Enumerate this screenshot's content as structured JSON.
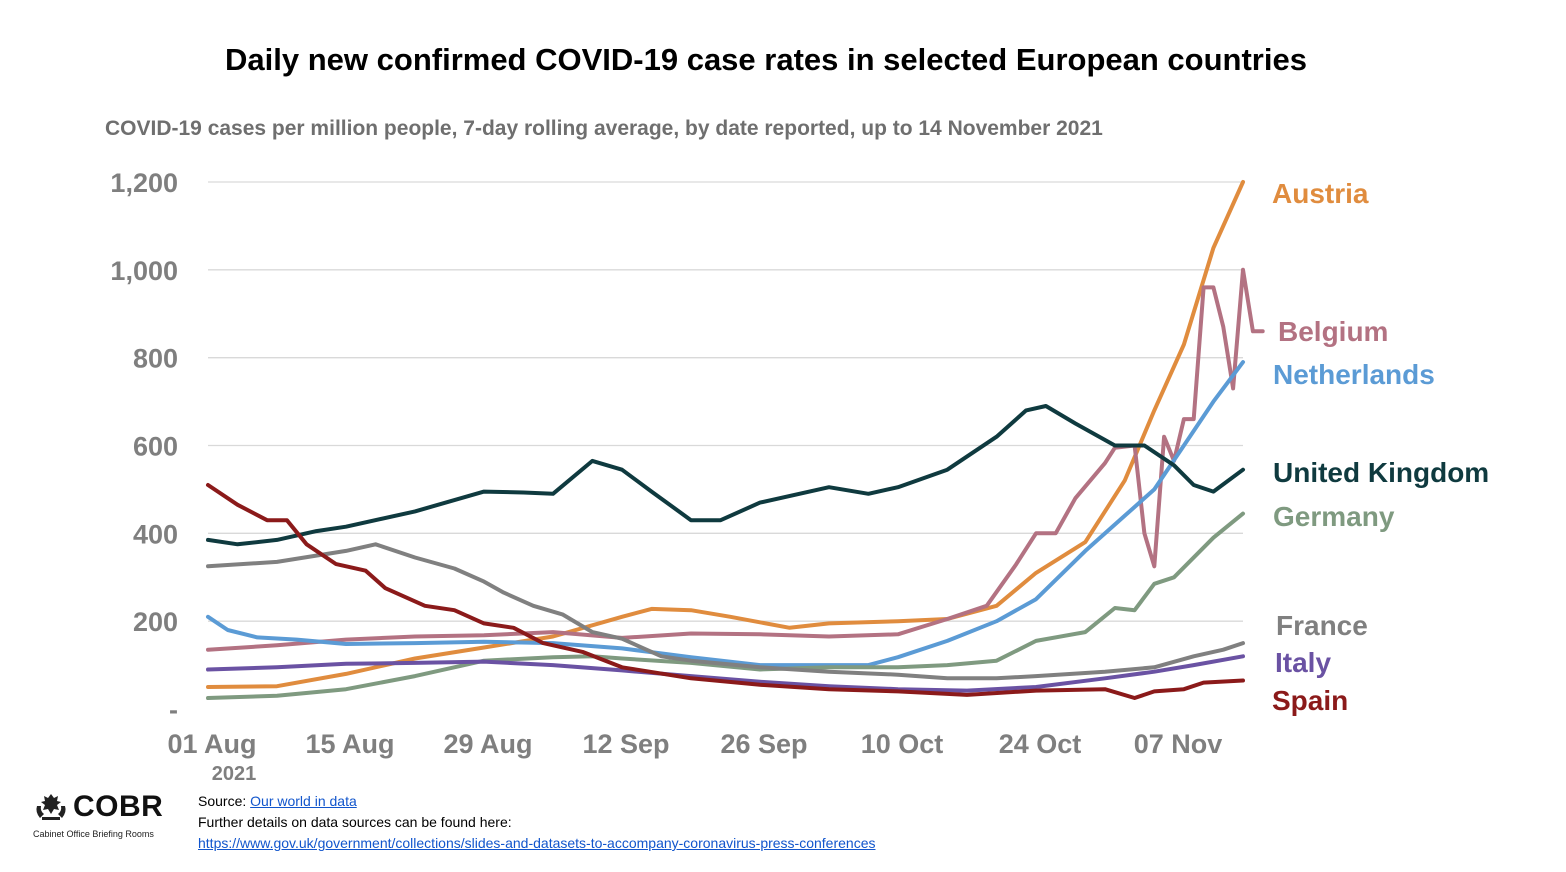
{
  "title": "Daily new confirmed COVID-19 case rates in selected European countries",
  "subtitle": "COVID-19 cases per million people, 7-day rolling average, by date reported, up to 14 November 2021",
  "footer": {
    "source_prefix": "Source: ",
    "source_link": "Our world in data",
    "details_text": "Further details on data sources can be found here:",
    "details_link": "https://www.gov.uk/government/collections/slides-and-datasets-to-accompany-coronavirus-press-conferences"
  },
  "logo": {
    "word": "COBR",
    "subtitle": "Cabinet Office Briefing Rooms"
  },
  "chart_data": {
    "type": "line",
    "title": "Daily new confirmed COVID-19 case rates in selected European countries",
    "subtitle": "COVID-19 cases per million people, 7-day rolling average, by date reported, up to 14 November 2021",
    "xlabel": "",
    "ylabel": "",
    "x_range": [
      "2021-08-01",
      "2021-11-14"
    ],
    "ylim": [
      0,
      1200
    ],
    "y_ticks": [
      {
        "value": 0,
        "label": "-"
      },
      {
        "value": 200,
        "label": "200"
      },
      {
        "value": 400,
        "label": "400"
      },
      {
        "value": 600,
        "label": "600"
      },
      {
        "value": 800,
        "label": "800"
      },
      {
        "value": 1000,
        "label": "1,000"
      },
      {
        "value": 1200,
        "label": "1,200"
      }
    ],
    "x_ticks": [
      {
        "date": "2021-08-01",
        "label": "01 Aug"
      },
      {
        "date": "2021-08-15",
        "label": "15 Aug"
      },
      {
        "date": "2021-08-29",
        "label": "29 Aug"
      },
      {
        "date": "2021-09-12",
        "label": "12 Sep"
      },
      {
        "date": "2021-09-26",
        "label": "26 Sep"
      },
      {
        "date": "2021-10-10",
        "label": "10 Oct"
      },
      {
        "date": "2021-10-24",
        "label": "24 Oct"
      },
      {
        "date": "2021-11-07",
        "label": "07 Nov"
      }
    ],
    "year_label": "2021",
    "grid": true,
    "legend": "labels at right end of lines",
    "series": [
      {
        "name": "Austria",
        "color": "#e08c3e",
        "points": [
          [
            "2021-08-01",
            50
          ],
          [
            "2021-08-08",
            52
          ],
          [
            "2021-08-15",
            80
          ],
          [
            "2021-08-22",
            115
          ],
          [
            "2021-08-29",
            140
          ],
          [
            "2021-09-05",
            165
          ],
          [
            "2021-09-12",
            210
          ],
          [
            "2021-09-15",
            228
          ],
          [
            "2021-09-19",
            225
          ],
          [
            "2021-09-23",
            210
          ],
          [
            "2021-09-29",
            185
          ],
          [
            "2021-10-03",
            195
          ],
          [
            "2021-10-10",
            200
          ],
          [
            "2021-10-15",
            205
          ],
          [
            "2021-10-20",
            235
          ],
          [
            "2021-10-24",
            310
          ],
          [
            "2021-10-29",
            380
          ],
          [
            "2021-11-02",
            520
          ],
          [
            "2021-11-05",
            680
          ],
          [
            "2021-11-08",
            830
          ],
          [
            "2021-11-11",
            1050
          ],
          [
            "2021-11-14",
            1200
          ]
        ]
      },
      {
        "name": "Belgium",
        "color": "#b37282",
        "points": [
          [
            "2021-08-01",
            135
          ],
          [
            "2021-08-08",
            145
          ],
          [
            "2021-08-15",
            158
          ],
          [
            "2021-08-22",
            165
          ],
          [
            "2021-08-29",
            168
          ],
          [
            "2021-09-05",
            175
          ],
          [
            "2021-09-12",
            162
          ],
          [
            "2021-09-19",
            172
          ],
          [
            "2021-09-26",
            170
          ],
          [
            "2021-10-03",
            165
          ],
          [
            "2021-10-10",
            170
          ],
          [
            "2021-10-15",
            205
          ],
          [
            "2021-10-19",
            235
          ],
          [
            "2021-10-22",
            330
          ],
          [
            "2021-10-24",
            400
          ],
          [
            "2021-10-26",
            400
          ],
          [
            "2021-10-28",
            480
          ],
          [
            "2021-10-31",
            560
          ],
          [
            "2021-11-01",
            595
          ],
          [
            "2021-11-03",
            600
          ],
          [
            "2021-11-04",
            400
          ],
          [
            "2021-11-05",
            325
          ],
          [
            "2021-11-06",
            620
          ],
          [
            "2021-11-07",
            565
          ],
          [
            "2021-11-08",
            660
          ],
          [
            "2021-11-09",
            660
          ],
          [
            "2021-11-10",
            960
          ],
          [
            "2021-11-11",
            960
          ],
          [
            "2021-11-12",
            870
          ],
          [
            "2021-11-13",
            730
          ],
          [
            "2021-11-14",
            1000
          ],
          [
            "2021-11-15",
            860
          ],
          [
            "2021-11-16",
            860
          ]
        ]
      },
      {
        "name": "Netherlands",
        "color": "#5b9bd5",
        "points": [
          [
            "2021-08-01",
            210
          ],
          [
            "2021-08-03",
            180
          ],
          [
            "2021-08-06",
            163
          ],
          [
            "2021-08-10",
            158
          ],
          [
            "2021-08-15",
            148
          ],
          [
            "2021-08-22",
            150
          ],
          [
            "2021-08-29",
            153
          ],
          [
            "2021-09-05",
            150
          ],
          [
            "2021-09-12",
            138
          ],
          [
            "2021-09-19",
            118
          ],
          [
            "2021-09-26",
            100
          ],
          [
            "2021-10-03",
            100
          ],
          [
            "2021-10-07",
            100
          ],
          [
            "2021-10-10",
            118
          ],
          [
            "2021-10-15",
            155
          ],
          [
            "2021-10-20",
            200
          ],
          [
            "2021-10-24",
            250
          ],
          [
            "2021-10-29",
            360
          ],
          [
            "2021-11-02",
            440
          ],
          [
            "2021-11-05",
            500
          ],
          [
            "2021-11-08",
            600
          ],
          [
            "2021-11-11",
            700
          ],
          [
            "2021-11-14",
            790
          ]
        ]
      },
      {
        "name": "United Kingdom",
        "color": "#0f3a3f",
        "points": [
          [
            "2021-08-01",
            385
          ],
          [
            "2021-08-04",
            375
          ],
          [
            "2021-08-08",
            385
          ],
          [
            "2021-08-12",
            405
          ],
          [
            "2021-08-15",
            415
          ],
          [
            "2021-08-22",
            450
          ],
          [
            "2021-08-29",
            495
          ],
          [
            "2021-09-02",
            493
          ],
          [
            "2021-09-05",
            490
          ],
          [
            "2021-09-09",
            565
          ],
          [
            "2021-09-12",
            545
          ],
          [
            "2021-09-15",
            495
          ],
          [
            "2021-09-19",
            430
          ],
          [
            "2021-09-22",
            430
          ],
          [
            "2021-09-26",
            470
          ],
          [
            "2021-10-03",
            505
          ],
          [
            "2021-10-07",
            490
          ],
          [
            "2021-10-10",
            505
          ],
          [
            "2021-10-15",
            545
          ],
          [
            "2021-10-20",
            620
          ],
          [
            "2021-10-23",
            680
          ],
          [
            "2021-10-25",
            690
          ],
          [
            "2021-10-28",
            650
          ],
          [
            "2021-11-01",
            600
          ],
          [
            "2021-11-04",
            600
          ],
          [
            "2021-11-07",
            555
          ],
          [
            "2021-11-09",
            510
          ],
          [
            "2021-11-11",
            495
          ],
          [
            "2021-11-14",
            545
          ]
        ]
      },
      {
        "name": "Germany",
        "color": "#7f9a80",
        "points": [
          [
            "2021-08-01",
            25
          ],
          [
            "2021-08-08",
            30
          ],
          [
            "2021-08-15",
            45
          ],
          [
            "2021-08-22",
            75
          ],
          [
            "2021-08-29",
            110
          ],
          [
            "2021-09-05",
            118
          ],
          [
            "2021-09-09",
            120
          ],
          [
            "2021-09-12",
            115
          ],
          [
            "2021-09-19",
            105
          ],
          [
            "2021-09-26",
            90
          ],
          [
            "2021-10-03",
            95
          ],
          [
            "2021-10-10",
            95
          ],
          [
            "2021-10-15",
            100
          ],
          [
            "2021-10-20",
            110
          ],
          [
            "2021-10-24",
            155
          ],
          [
            "2021-10-29",
            175
          ],
          [
            "2021-11-01",
            230
          ],
          [
            "2021-11-03",
            225
          ],
          [
            "2021-11-05",
            285
          ],
          [
            "2021-11-07",
            300
          ],
          [
            "2021-11-11",
            390
          ],
          [
            "2021-11-14",
            445
          ]
        ]
      },
      {
        "name": "France",
        "color": "#808080",
        "points": [
          [
            "2021-08-01",
            325
          ],
          [
            "2021-08-08",
            335
          ],
          [
            "2021-08-15",
            360
          ],
          [
            "2021-08-18",
            375
          ],
          [
            "2021-08-22",
            345
          ],
          [
            "2021-08-26",
            320
          ],
          [
            "2021-08-29",
            290
          ],
          [
            "2021-08-31",
            265
          ],
          [
            "2021-09-03",
            235
          ],
          [
            "2021-09-06",
            215
          ],
          [
            "2021-09-09",
            175
          ],
          [
            "2021-09-12",
            160
          ],
          [
            "2021-09-16",
            120
          ],
          [
            "2021-09-19",
            110
          ],
          [
            "2021-09-26",
            95
          ],
          [
            "2021-10-03",
            85
          ],
          [
            "2021-10-10",
            78
          ],
          [
            "2021-10-15",
            70
          ],
          [
            "2021-10-20",
            70
          ],
          [
            "2021-10-24",
            75
          ],
          [
            "2021-10-31",
            85
          ],
          [
            "2021-11-05",
            95
          ],
          [
            "2021-11-09",
            120
          ],
          [
            "2021-11-12",
            135
          ],
          [
            "2021-11-14",
            150
          ]
        ]
      },
      {
        "name": "Italy",
        "color": "#6a52a3",
        "points": [
          [
            "2021-08-01",
            90
          ],
          [
            "2021-08-08",
            95
          ],
          [
            "2021-08-15",
            103
          ],
          [
            "2021-08-22",
            105
          ],
          [
            "2021-08-29",
            108
          ],
          [
            "2021-09-05",
            100
          ],
          [
            "2021-09-12",
            88
          ],
          [
            "2021-09-19",
            75
          ],
          [
            "2021-09-26",
            62
          ],
          [
            "2021-10-03",
            52
          ],
          [
            "2021-10-10",
            45
          ],
          [
            "2021-10-17",
            42
          ],
          [
            "2021-10-24",
            50
          ],
          [
            "2021-10-31",
            70
          ],
          [
            "2021-11-05",
            85
          ],
          [
            "2021-11-09",
            100
          ],
          [
            "2021-11-14",
            120
          ]
        ]
      },
      {
        "name": "Spain",
        "color": "#8b1a1a",
        "points": [
          [
            "2021-08-01",
            510
          ],
          [
            "2021-08-04",
            465
          ],
          [
            "2021-08-07",
            430
          ],
          [
            "2021-08-09",
            430
          ],
          [
            "2021-08-11",
            375
          ],
          [
            "2021-08-14",
            330
          ],
          [
            "2021-08-17",
            315
          ],
          [
            "2021-08-19",
            275
          ],
          [
            "2021-08-23",
            235
          ],
          [
            "2021-08-26",
            225
          ],
          [
            "2021-08-29",
            195
          ],
          [
            "2021-09-01",
            185
          ],
          [
            "2021-09-04",
            150
          ],
          [
            "2021-09-08",
            130
          ],
          [
            "2021-09-12",
            95
          ],
          [
            "2021-09-19",
            70
          ],
          [
            "2021-09-26",
            55
          ],
          [
            "2021-10-03",
            45
          ],
          [
            "2021-10-10",
            40
          ],
          [
            "2021-10-17",
            32
          ],
          [
            "2021-10-24",
            42
          ],
          [
            "2021-10-31",
            45
          ],
          [
            "2021-11-03",
            25
          ],
          [
            "2021-11-05",
            40
          ],
          [
            "2021-11-08",
            45
          ],
          [
            "2021-11-10",
            60
          ],
          [
            "2021-11-14",
            65
          ]
        ]
      }
    ]
  }
}
